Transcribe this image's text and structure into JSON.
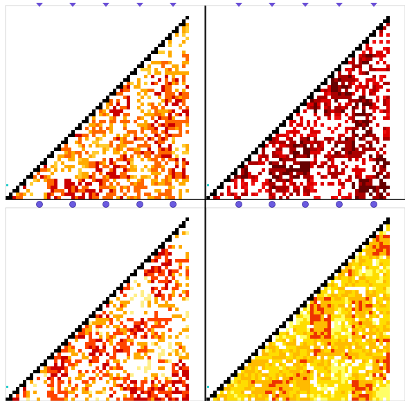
{
  "panels": [
    {
      "palette": [
        "#000000",
        "#cc0000",
        "#ff6600",
        "#ffaa00",
        "#ffcc33"
      ]
    },
    {
      "palette": [
        "#000000",
        "#660000",
        "#aa0000",
        "#dd0000",
        "#ee1111"
      ]
    },
    {
      "palette": [
        "#000000",
        "#cc0000",
        "#ff4400",
        "#ffaa00",
        "#ffee88"
      ]
    },
    {
      "palette": [
        "#000000",
        "#ee3300",
        "#ffbb00",
        "#ffdd00",
        "#ffff66"
      ]
    }
  ]
}
